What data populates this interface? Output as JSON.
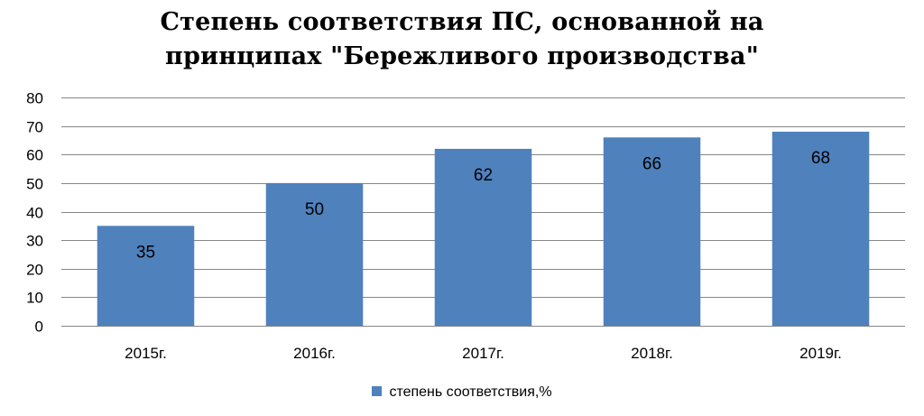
{
  "chart_data": {
    "type": "bar",
    "title_lines": [
      "Степень соответствия ПС, основанной на",
      "принципах \"Бережливого производства\""
    ],
    "categories": [
      "2015г.",
      "2016г.",
      "2017г.",
      "2018г.",
      "2019г."
    ],
    "series": [
      {
        "name": "степень соответствия,%",
        "values": [
          35,
          50,
          62,
          66,
          68
        ],
        "color": "#4f81bd"
      }
    ],
    "y_ticks": [
      "0",
      "10",
      "20",
      "30",
      "40",
      "50",
      "60",
      "70",
      "80"
    ],
    "ylim": [
      0,
      80
    ],
    "y_step": 10,
    "grid": true,
    "grid_color": "#868686",
    "legend_position": "bottom",
    "data_labels": true,
    "data_label_position": "inside-end"
  }
}
